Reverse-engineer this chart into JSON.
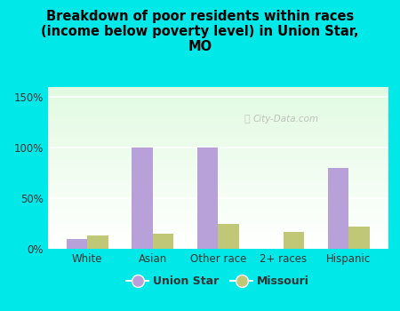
{
  "title": "Breakdown of poor residents within races\n(income below poverty level) in Union Star,\nMO",
  "categories": [
    "White",
    "Asian",
    "Other race",
    "2+ races",
    "Hispanic"
  ],
  "union_star_values": [
    10,
    100,
    100,
    0,
    80
  ],
  "missouri_values": [
    13,
    15,
    25,
    17,
    22
  ],
  "union_star_color": "#b8a0d8",
  "missouri_color": "#c0c878",
  "bg_color": "#00e8e8",
  "ylabel_ticks": [
    0,
    50,
    100,
    150
  ],
  "ylabel_labels": [
    "0%",
    "50%",
    "100%",
    "150%"
  ],
  "ylim": [
    0,
    160
  ],
  "legend_union_star": "Union Star",
  "legend_missouri": "Missouri",
  "watermark": "City-Data.com",
  "bar_width": 0.32,
  "grid_color": "#cccccc",
  "title_fontsize": 10.5,
  "tick_fontsize": 8.5
}
